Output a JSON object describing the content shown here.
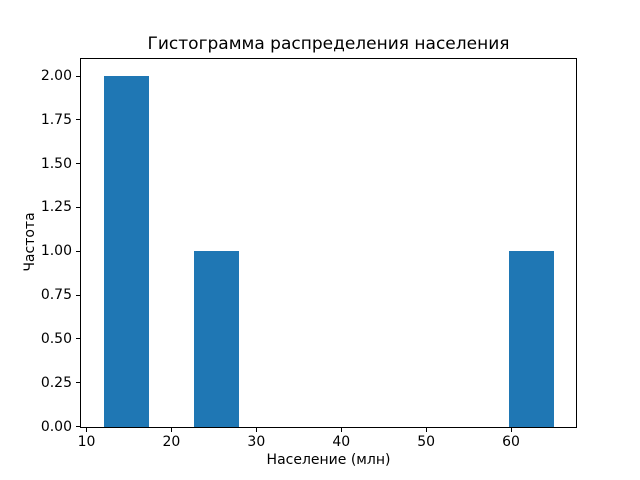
{
  "chart_data": {
    "type": "bar",
    "subtype": "histogram",
    "title": "Гистограмма распределения населения",
    "xlabel": "Население (млн)",
    "ylabel": "Частота",
    "bar_color": "#1f77b4",
    "grid": false,
    "legend": null,
    "xlim": [
      9.35,
      67.65
    ],
    "ylim": [
      0,
      2.1
    ],
    "x_ticks": [
      10,
      20,
      30,
      40,
      50,
      60
    ],
    "y_ticks": [
      0.0,
      0.25,
      0.5,
      0.75,
      1.0,
      1.25,
      1.5,
      1.75,
      2.0
    ],
    "y_tick_decimals": 2,
    "bins": {
      "start": 12,
      "end": 65,
      "count": 10,
      "bin_width": 5.3,
      "frequencies": [
        2,
        0,
        1,
        0,
        0,
        0,
        0,
        0,
        0,
        1
      ]
    },
    "bars": [
      {
        "x0": 12.0,
        "x1": 17.3,
        "height": 2
      },
      {
        "x0": 22.6,
        "x1": 27.9,
        "height": 1
      },
      {
        "x0": 59.7,
        "x1": 65.0,
        "height": 1
      }
    ]
  }
}
